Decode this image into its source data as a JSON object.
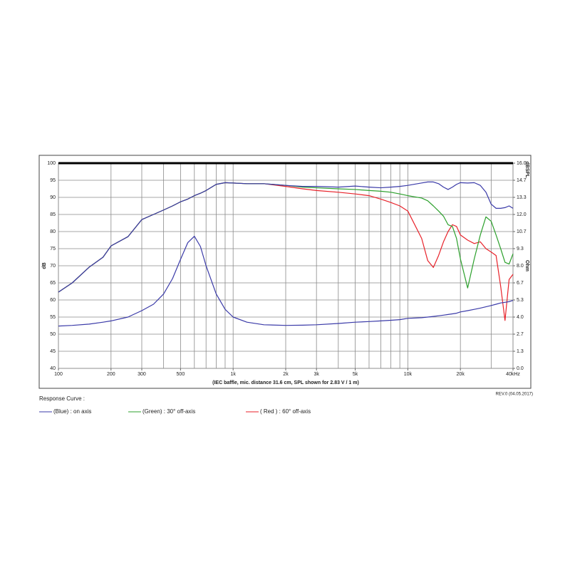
{
  "chart_data": {
    "type": "line",
    "log_x": true,
    "x_label": "(IEC baffle, mic. distance 31.6 cm, SPL shown for 2.83 V / 1 m)",
    "y_label": "dB",
    "y2_label": "Ohm",
    "y2_unit_top": "dBSPL",
    "legend_title": "Response Curve :",
    "revision": "REV.0 (04.05.2017)",
    "xlim": [
      100,
      40000
    ],
    "ylim": [
      40,
      100
    ],
    "y2lim": [
      0,
      16
    ],
    "xticks": [
      100,
      200,
      300,
      500,
      {
        "value": 1000,
        "label": "1k"
      },
      {
        "value": 2000,
        "label": "2k"
      },
      {
        "value": 3000,
        "label": "3k"
      },
      {
        "value": 5000,
        "label": "5k"
      },
      {
        "value": 10000,
        "label": "10k"
      },
      {
        "value": 20000,
        "label": "20k"
      },
      {
        "value": 40000,
        "label": "40kHz"
      }
    ],
    "xgrid": [
      100,
      200,
      300,
      400,
      500,
      600,
      700,
      800,
      900,
      1000,
      2000,
      3000,
      4000,
      5000,
      6000,
      7000,
      8000,
      9000,
      10000,
      20000,
      30000,
      40000
    ],
    "yticks": [
      40,
      45,
      50,
      55,
      60,
      65,
      70,
      75,
      80,
      85,
      90,
      95,
      100
    ],
    "y2ticks": [
      {
        "value": 0,
        "label": "0.0"
      },
      {
        "value": 1.333,
        "label": "1.3"
      },
      {
        "value": 2.667,
        "label": "2.7"
      },
      {
        "value": 4,
        "label": "4.0"
      },
      {
        "value": 5.333,
        "label": "5.3"
      },
      {
        "value": 6.667,
        "label": "6.7"
      },
      {
        "value": 8,
        "label": "8.0"
      },
      {
        "value": 9.333,
        "label": "9.3"
      },
      {
        "value": 10.667,
        "label": "10.7"
      },
      {
        "value": 12,
        "label": "12.0"
      },
      {
        "value": 13.333,
        "label": "13.3"
      },
      {
        "value": 14.667,
        "label": "14.7"
      },
      {
        "value": 16,
        "label": "16.0"
      }
    ],
    "grid": true,
    "x": [
      100,
      120,
      150,
      180,
      200,
      250,
      300,
      350,
      400,
      450,
      500,
      550,
      600,
      650,
      700,
      800,
      900,
      1000,
      1200,
      1500,
      2000,
      2500,
      3000,
      4000,
      5000,
      6000,
      7000,
      8000,
      9000,
      10000,
      12000,
      13000,
      14000,
      15000,
      16000,
      17000,
      18000,
      19000,
      20000,
      22000,
      24000,
      26000,
      28000,
      30000,
      32000,
      34000,
      36000,
      38000,
      40000
    ],
    "series": [
      {
        "name": "( Red ) : 60° off-axis",
        "color": "#e8222a",
        "values": [
          62.3,
          65,
          69.6,
          72.5,
          75.8,
          78.5,
          83.5,
          85,
          86.3,
          87.5,
          88.7,
          89.5,
          90.5,
          91.2,
          92,
          93.8,
          94.3,
          94.2,
          94,
          94,
          93.2,
          92.5,
          92,
          91.5,
          91,
          90.5,
          89.5,
          88.5,
          87.5,
          86,
          78,
          71.5,
          69.5,
          73,
          77,
          80,
          82,
          81.5,
          79,
          77.5,
          76.5,
          77,
          75,
          74,
          73,
          64,
          54,
          66,
          67.5
        ]
      },
      {
        "name": "(Green) : 30° off-axis",
        "color": "#2ca02c",
        "values": [
          62.3,
          65,
          69.6,
          72.5,
          75.8,
          78.5,
          83.5,
          85,
          86.3,
          87.5,
          88.7,
          89.5,
          90.5,
          91.2,
          92,
          93.8,
          94.3,
          94.2,
          94,
          94,
          93.5,
          93,
          92.8,
          92.5,
          92.3,
          92,
          91.8,
          91.5,
          91,
          90.5,
          89.8,
          89,
          87.5,
          86,
          84.5,
          82,
          81.5,
          78,
          72,
          63.5,
          72,
          79,
          84.3,
          83,
          79,
          75,
          71,
          70.5,
          73.5
        ]
      },
      {
        "name": "(Blue)  : on axis",
        "color": "#3a3aa8",
        "values": [
          62.3,
          65,
          69.6,
          72.5,
          75.8,
          78.5,
          83.5,
          85,
          86.3,
          87.5,
          88.7,
          89.5,
          90.5,
          91.2,
          92,
          93.8,
          94.3,
          94.2,
          94,
          94,
          93.5,
          93.2,
          93.2,
          93,
          93.3,
          93,
          92.8,
          93,
          93.2,
          93.5,
          94.2,
          94.5,
          94.5,
          94,
          93,
          92.3,
          93,
          93.8,
          94.3,
          94.2,
          94.3,
          93.5,
          91.5,
          88,
          86.8,
          86.8,
          87,
          87.5,
          86.8
        ]
      },
      {
        "axis": "y2",
        "color": "#3a3aa8",
        "values": [
          3.3,
          3.35,
          3.45,
          3.6,
          3.7,
          4.0,
          4.5,
          5.0,
          5.8,
          7.0,
          8.5,
          9.8,
          10.3,
          9.5,
          8.0,
          5.8,
          4.6,
          4.0,
          3.6,
          3.4,
          3.35,
          3.37,
          3.4,
          3.5,
          3.6,
          3.65,
          3.7,
          3.75,
          3.8,
          3.9,
          3.95,
          4.0,
          4.05,
          4.1,
          4.15,
          4.2,
          4.25,
          4.3,
          4.4,
          4.5,
          4.6,
          4.7,
          4.8,
          4.9,
          5.0,
          5.1,
          5.15,
          5.2,
          5.3
        ]
      }
    ]
  }
}
